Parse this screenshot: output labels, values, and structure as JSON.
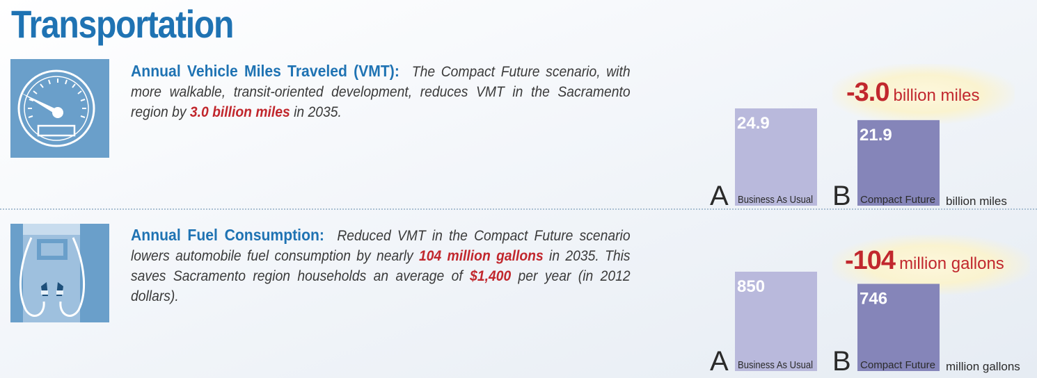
{
  "header": {
    "title": "Transportation"
  },
  "colors": {
    "title_blue": "#1f73b3",
    "highlight_red": "#c1272d",
    "bar_a": "#b9b9dc",
    "bar_b": "#8585b9",
    "icon_bg": "#6a9fca"
  },
  "sections": [
    {
      "icon": "speedometer-icon",
      "lead": "Annual Vehicle Miles Traveled (VMT):",
      "text_1": "The Compact Future scenario, with more walkable, transit-oriented development, reduces VMT in the Sacramento region by",
      "highlight_1": "3.0 billion miles",
      "text_2": "in 2035."
    },
    {
      "icon": "fuel-pump-icon",
      "lead": "Annual Fuel Consumption:",
      "text_1": "Reduced VMT in the Compact Future scenario lowers automobile fuel consumption by nearly",
      "highlight_1": "104 million gallons",
      "text_2": "in 2035. This saves Sacramento region households an average of",
      "highlight_2": "$1,400",
      "text_3": "per year (in 2012 dollars)."
    }
  ],
  "chart_data": [
    {
      "type": "bar",
      "categories": [
        "Business As Usual",
        "Compact Future"
      ],
      "category_letters": [
        "A",
        "B"
      ],
      "values": [
        24.9,
        21.9
      ],
      "value_labels": [
        "24.9",
        "21.9"
      ],
      "unit": "billion miles",
      "difference": {
        "value": -3.0,
        "label": "-3.0",
        "unit": "billion miles"
      },
      "colors": [
        "#b9b9dc",
        "#8585b9"
      ]
    },
    {
      "type": "bar",
      "categories": [
        "Business As Usual",
        "Compact Future"
      ],
      "category_letters": [
        "A",
        "B"
      ],
      "values": [
        850,
        746
      ],
      "value_labels": [
        "850",
        "746"
      ],
      "unit": "million gallons",
      "difference": {
        "value": -104,
        "label": "-104",
        "unit": "million gallons"
      },
      "colors": [
        "#b9b9dc",
        "#8585b9"
      ]
    }
  ]
}
